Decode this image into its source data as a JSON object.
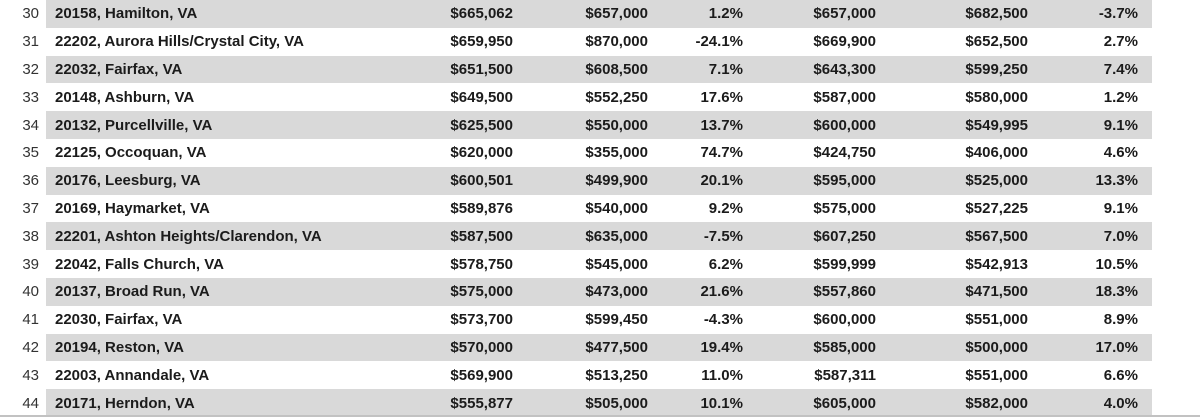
{
  "colors": {
    "band": "#d9d9d9",
    "text": "#1b1b1b",
    "row_number": "#333333"
  },
  "table": {
    "rows": [
      {
        "row": "30",
        "zip_location": "20158, Hamilton, VA",
        "values": [
          "$665,062",
          "$657,000",
          "1.2%",
          "$657,000",
          "$682,500",
          "-3.7%"
        ]
      },
      {
        "row": "31",
        "zip_location": "22202, Aurora Hills/Crystal City, VA",
        "values": [
          "$659,950",
          "$870,000",
          "-24.1%",
          "$669,900",
          "$652,500",
          "2.7%"
        ]
      },
      {
        "row": "32",
        "zip_location": "22032, Fairfax, VA",
        "values": [
          "$651,500",
          "$608,500",
          "7.1%",
          "$643,300",
          "$599,250",
          "7.4%"
        ]
      },
      {
        "row": "33",
        "zip_location": "20148, Ashburn, VA",
        "values": [
          "$649,500",
          "$552,250",
          "17.6%",
          "$587,000",
          "$580,000",
          "1.2%"
        ]
      },
      {
        "row": "34",
        "zip_location": "20132, Purcellville, VA",
        "values": [
          "$625,500",
          "$550,000",
          "13.7%",
          "$600,000",
          "$549,995",
          "9.1%"
        ]
      },
      {
        "row": "35",
        "zip_location": "22125, Occoquan, VA",
        "values": [
          "$620,000",
          "$355,000",
          "74.7%",
          "$424,750",
          "$406,000",
          "4.6%"
        ]
      },
      {
        "row": "36",
        "zip_location": "20176, Leesburg, VA",
        "values": [
          "$600,501",
          "$499,900",
          "20.1%",
          "$595,000",
          "$525,000",
          "13.3%"
        ]
      },
      {
        "row": "37",
        "zip_location": "20169, Haymarket, VA",
        "values": [
          "$589,876",
          "$540,000",
          "9.2%",
          "$575,000",
          "$527,225",
          "9.1%"
        ]
      },
      {
        "row": "38",
        "zip_location": "22201, Ashton Heights/Clarendon, VA",
        "values": [
          "$587,500",
          "$635,000",
          "-7.5%",
          "$607,250",
          "$567,500",
          "7.0%"
        ]
      },
      {
        "row": "39",
        "zip_location": "22042, Falls Church, VA",
        "values": [
          "$578,750",
          "$545,000",
          "6.2%",
          "$599,999",
          "$542,913",
          "10.5%"
        ]
      },
      {
        "row": "40",
        "zip_location": "20137, Broad Run, VA",
        "values": [
          "$575,000",
          "$473,000",
          "21.6%",
          "$557,860",
          "$471,500",
          "18.3%"
        ]
      },
      {
        "row": "41",
        "zip_location": "22030, Fairfax, VA",
        "values": [
          "$573,700",
          "$599,450",
          "-4.3%",
          "$600,000",
          "$551,000",
          "8.9%"
        ]
      },
      {
        "row": "42",
        "zip_location": "20194, Reston, VA",
        "values": [
          "$570,000",
          "$477,500",
          "19.4%",
          "$585,000",
          "$500,000",
          "17.0%"
        ]
      },
      {
        "row": "43",
        "zip_location": "22003, Annandale, VA",
        "values": [
          "$569,900",
          "$513,250",
          "11.0%",
          "$587,311",
          "$551,000",
          "6.6%"
        ]
      },
      {
        "row": "44",
        "zip_location": "20171, Herndon, VA",
        "values": [
          "$555,877",
          "$505,000",
          "10.1%",
          "$605,000",
          "$582,000",
          "4.0%"
        ]
      }
    ]
  }
}
